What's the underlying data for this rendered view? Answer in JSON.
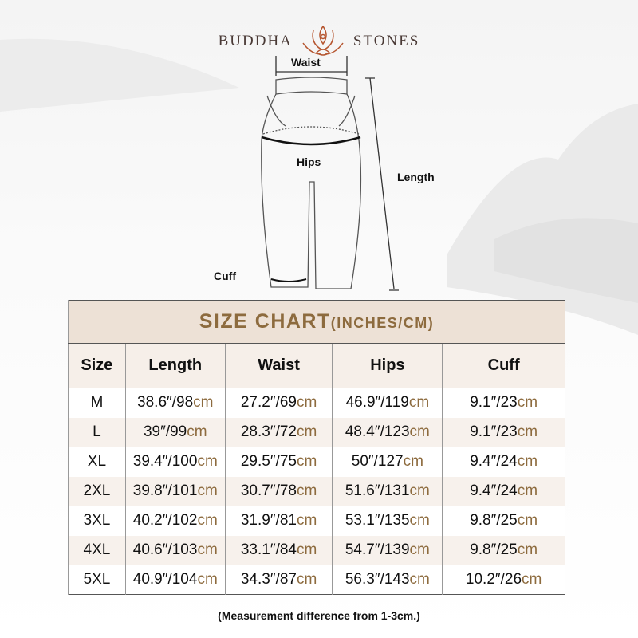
{
  "brand": {
    "left": "BUDDHA",
    "right": "STONES",
    "logo_icon": "lotus-meditation-icon",
    "logo_color": "#b5552f"
  },
  "diagram": {
    "waist": "Waist",
    "hips": "Hips",
    "length": "Length",
    "cuff": "Cuff"
  },
  "table": {
    "title": "SIZE CHART",
    "title_units": "(INCHES/CM)",
    "headers": [
      "Size",
      "Length",
      "Waist",
      "Hips",
      "Cuff"
    ],
    "unit": "cm",
    "rows": [
      {
        "size": "M",
        "cells": [
          "38.6″/98",
          "27.2″/69",
          "46.9″/119",
          "9.1″/23"
        ]
      },
      {
        "size": "L",
        "cells": [
          "39″/99",
          "28.3″/72",
          "48.4″/123",
          "9.1″/23"
        ]
      },
      {
        "size": "XL",
        "cells": [
          "39.4″/100",
          "29.5″/75",
          "50″/127",
          "9.4″/24"
        ]
      },
      {
        "size": "2XL",
        "cells": [
          "39.8″/101",
          "30.7″/78",
          "51.6″/131",
          "9.4″/24"
        ]
      },
      {
        "size": "3XL",
        "cells": [
          "40.2″/102",
          "31.9″/81",
          "53.1″/135",
          "9.8″/25"
        ]
      },
      {
        "size": "4XL",
        "cells": [
          "40.6″/103",
          "33.1″/84",
          "54.7″/139",
          "9.8″/25"
        ]
      },
      {
        "size": "5XL",
        "cells": [
          "40.9″/104",
          "34.3″/87",
          "56.3″/143",
          "10.2″/26"
        ]
      }
    ]
  },
  "note": "(Measurement difference from 1-3cm.)",
  "colors": {
    "accent": "#8d6b3e",
    "title_bg": "#ede1d6",
    "header_bg": "#f6efe9"
  }
}
